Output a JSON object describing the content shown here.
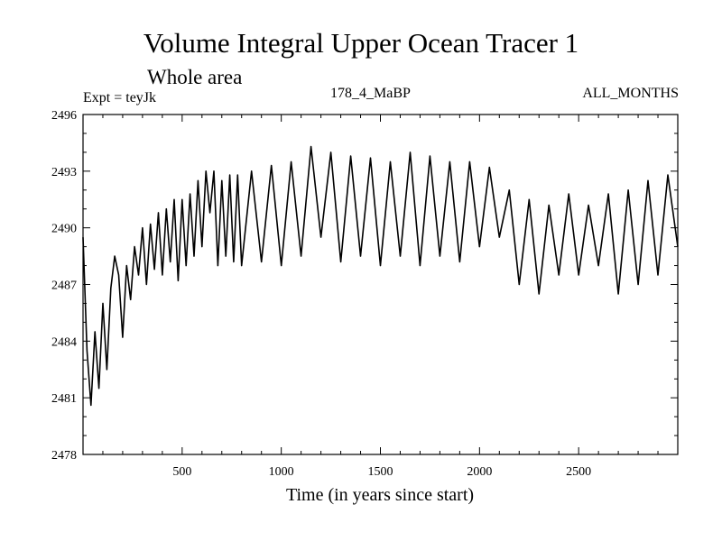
{
  "chart_data": {
    "type": "line",
    "title": "Volume Integral Upper Ocean Tracer 1",
    "subtitle": "Whole area",
    "expt_label": "Expt = teyJk",
    "run_label": "178_4_MaBP",
    "months_label": "ALL_MONTHS",
    "xlabel": "Time (in years since start)",
    "ylabel": "",
    "xlim": [
      0,
      3000
    ],
    "ylim": [
      2478,
      2496
    ],
    "x_ticks": [
      500,
      1000,
      1500,
      2000,
      2500
    ],
    "x_tick_labels": [
      "500",
      "1000",
      "1500",
      "2000",
      "2500"
    ],
    "y_ticks": [
      2478,
      2481,
      2484,
      2487,
      2490,
      2493,
      2496
    ],
    "y_tick_labels": [
      "2478",
      "2481",
      "2484",
      "2487",
      "2490",
      "2493",
      "2496"
    ],
    "series": [
      {
        "name": "Volume Integral Upper Ocean Tracer 1",
        "color": "#000000",
        "x": [
          0,
          20,
          40,
          60,
          80,
          100,
          120,
          140,
          160,
          180,
          200,
          220,
          240,
          260,
          280,
          300,
          320,
          340,
          360,
          380,
          400,
          420,
          440,
          460,
          480,
          500,
          520,
          540,
          560,
          580,
          600,
          620,
          640,
          660,
          680,
          700,
          720,
          740,
          760,
          780,
          800,
          850,
          900,
          950,
          1000,
          1050,
          1100,
          1150,
          1200,
          1250,
          1300,
          1350,
          1400,
          1450,
          1500,
          1550,
          1600,
          1650,
          1700,
          1750,
          1800,
          1850,
          1900,
          1950,
          2000,
          2050,
          2100,
          2150,
          2200,
          2250,
          2300,
          2350,
          2400,
          2450,
          2500,
          2550,
          2600,
          2650,
          2700,
          2750,
          2800,
          2850,
          2900,
          2950,
          3000
        ],
        "values": [
          2489.5,
          2483.5,
          2480.6,
          2484.5,
          2481.5,
          2486.0,
          2482.5,
          2486.8,
          2488.5,
          2487.5,
          2484.2,
          2488.0,
          2486.2,
          2489.0,
          2487.5,
          2490.0,
          2487.0,
          2490.2,
          2487.8,
          2490.8,
          2487.5,
          2491.0,
          2488.2,
          2491.5,
          2487.2,
          2491.5,
          2488.0,
          2491.8,
          2488.5,
          2492.5,
          2489.0,
          2493.0,
          2490.8,
          2493.0,
          2488.0,
          2492.5,
          2488.5,
          2492.8,
          2488.2,
          2492.8,
          2488.0,
          2493.0,
          2488.2,
          2493.3,
          2488.0,
          2493.5,
          2488.5,
          2494.3,
          2489.5,
          2494.0,
          2488.2,
          2493.8,
          2488.5,
          2493.7,
          2488.0,
          2493.5,
          2488.5,
          2494.0,
          2488.0,
          2493.8,
          2488.5,
          2493.5,
          2488.2,
          2493.5,
          2489.0,
          2493.2,
          2489.5,
          2492.0,
          2487.0,
          2491.5,
          2486.5,
          2491.2,
          2487.5,
          2491.8,
          2487.5,
          2491.2,
          2488.0,
          2491.8,
          2486.5,
          2492.0,
          2487.0,
          2492.5,
          2487.5,
          2492.8,
          2489.0
        ]
      }
    ]
  }
}
